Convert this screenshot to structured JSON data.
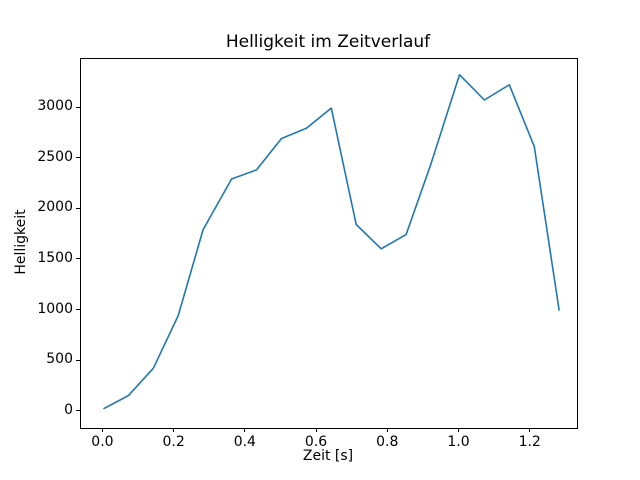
{
  "chart_data": {
    "type": "line",
    "title": "Helligkeit im Zeitverlauf",
    "xlabel": "Zeit [s]",
    "ylabel": "Helligkeit",
    "x": [
      0.0,
      0.07,
      0.14,
      0.21,
      0.28,
      0.36,
      0.43,
      0.5,
      0.57,
      0.64,
      0.71,
      0.78,
      0.85,
      0.92,
      1.0,
      1.07,
      1.14,
      1.21,
      1.28
    ],
    "y": [
      30,
      160,
      430,
      950,
      1800,
      2300,
      2390,
      2700,
      2800,
      3000,
      1850,
      1610,
      1750,
      2450,
      3330,
      3080,
      3230,
      2620,
      1000
    ],
    "xlim": [
      -0.063,
      1.33
    ],
    "ylim": [
      -160,
      3485
    ],
    "xticks": {
      "values": [
        0.0,
        0.2,
        0.4,
        0.6,
        0.8,
        1.0,
        1.2
      ],
      "labels": [
        "0.0",
        "0.2",
        "0.4",
        "0.6",
        "0.8",
        "1.0",
        "1.2"
      ]
    },
    "yticks": {
      "values": [
        0,
        500,
        1000,
        1500,
        2000,
        2500,
        3000
      ],
      "labels": [
        "0",
        "500",
        "1000",
        "1500",
        "2000",
        "2500",
        "3000"
      ]
    },
    "line_color": "#1f77b4",
    "axis_color": "#000000",
    "background_color": "#ffffff",
    "grid": false
  }
}
